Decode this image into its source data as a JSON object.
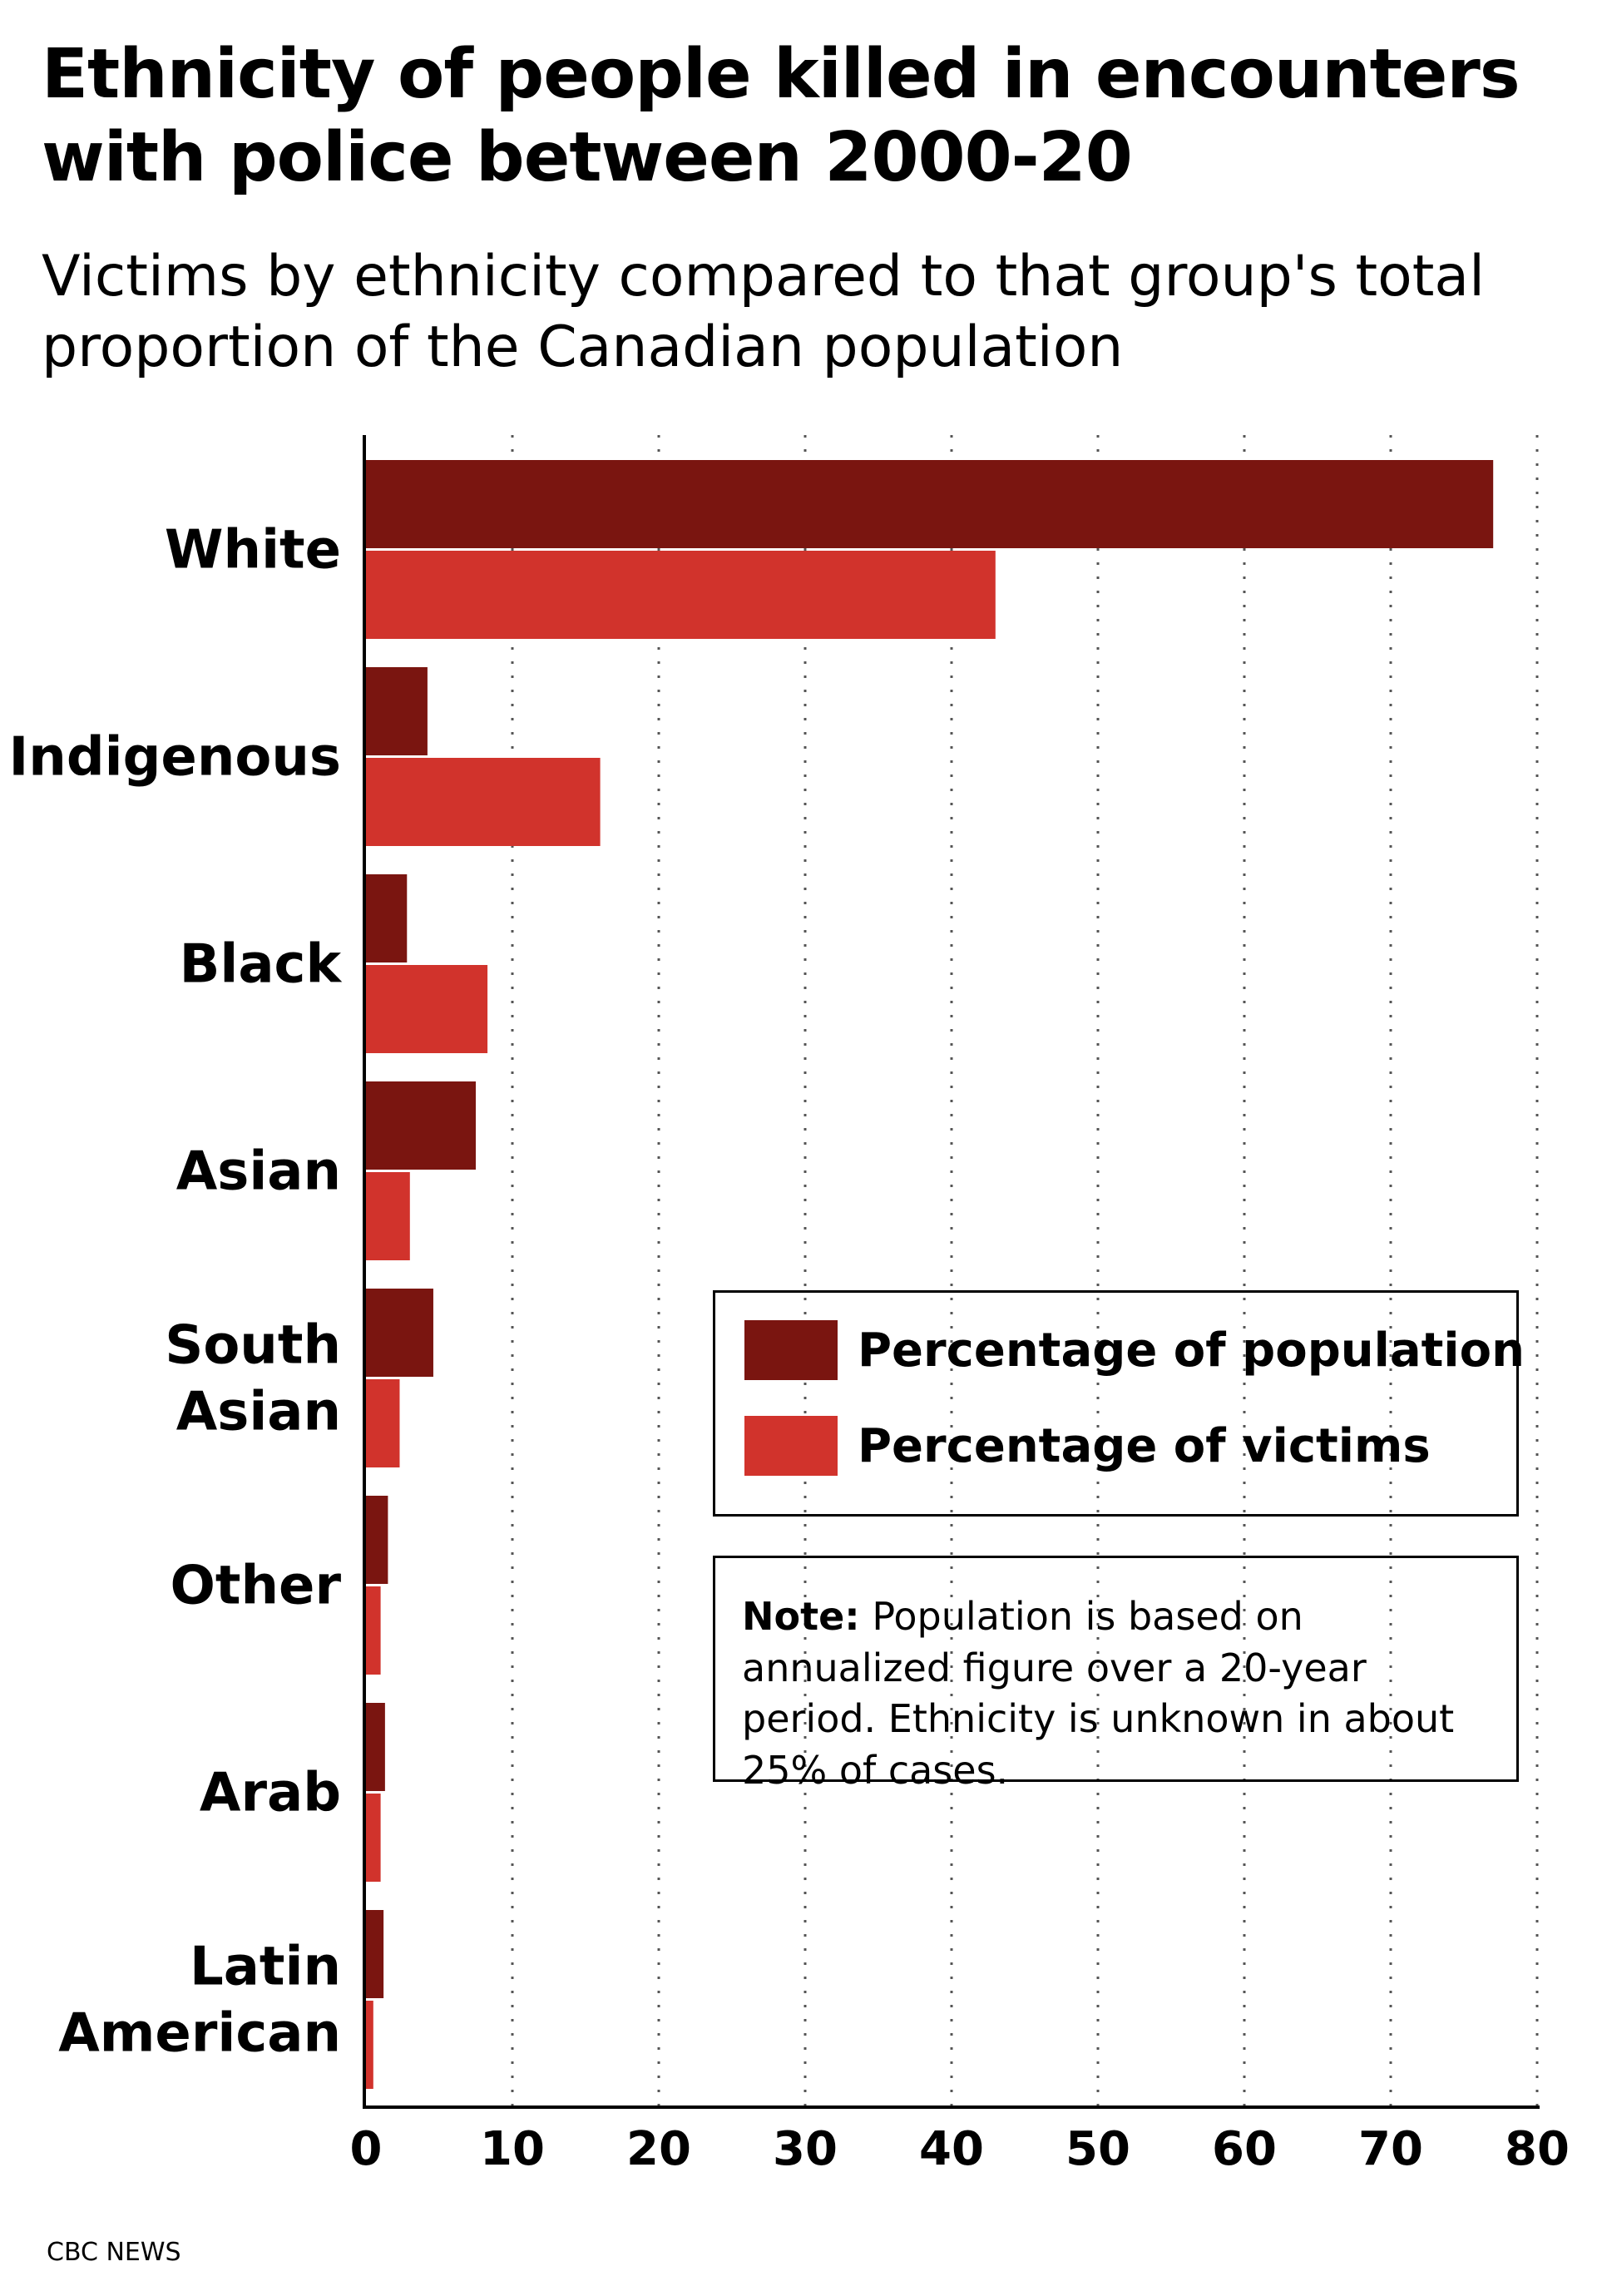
{
  "title": "Ethnicity of people killed in encounters with police between 2000-20",
  "subtitle": "Victims by ethnicity compared to that group's total proportion of the Canadian population",
  "legend": {
    "population_label": "Percentage of population",
    "victims_label": "Percentage of victims"
  },
  "note": {
    "label": "Note:",
    "text": "Population is based on annualized figure over a 20-year period. Ethnicity is unknown in about 25% of cases."
  },
  "source": "CBC NEWS",
  "colors": {
    "population": "#7a1510",
    "victims": "#d1332c"
  },
  "chart_data": {
    "type": "bar",
    "orientation": "horizontal",
    "categories": [
      "White",
      "Indigenous",
      "Black",
      "Asian",
      "South Asian",
      "Other",
      "Arab",
      "Latin American"
    ],
    "series": [
      {
        "name": "Percentage of population",
        "values": [
          77,
          4.2,
          2.8,
          7.5,
          4.6,
          1.5,
          1.3,
          1.2
        ]
      },
      {
        "name": "Percentage of victims",
        "values": [
          43,
          16,
          8.3,
          3.0,
          2.3,
          1.0,
          1.0,
          0.5
        ]
      }
    ],
    "xlim": [
      0,
      80
    ],
    "xticks": [
      0,
      10,
      20,
      30,
      40,
      50,
      60,
      70,
      80
    ],
    "grid": "vertical dotted",
    "legend_position": "right-middle"
  }
}
